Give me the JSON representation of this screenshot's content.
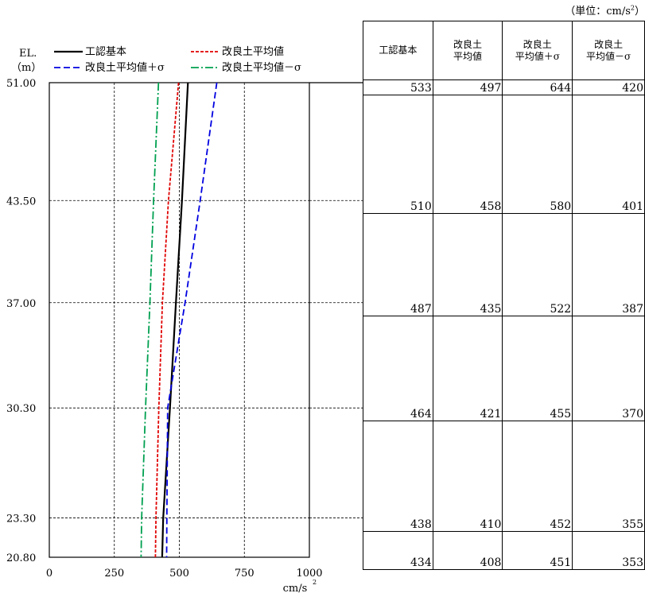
{
  "chart_data": {
    "type": "line",
    "x_axis": {
      "min": 0,
      "max": 1000,
      "ticks": [
        0,
        250,
        500,
        750,
        1000
      ],
      "tick_labels": [
        "0",
        "250",
        "500",
        "750",
        "1000"
      ],
      "unit": "cm/s",
      "unit_sup": "2"
    },
    "y_axis": {
      "label": "EL.",
      "unit": "（m）",
      "min": 20.8,
      "max": 51.0,
      "ticks": [
        51.0,
        43.5,
        37.0,
        30.3,
        23.3,
        20.8
      ],
      "tick_labels": [
        "51.00",
        "43.50",
        "37.00",
        "30.30",
        "23.30",
        "20.80"
      ]
    },
    "grid": true,
    "legend_position": "top",
    "elevations": [
      51.0,
      43.5,
      37.0,
      30.3,
      23.3,
      20.8
    ],
    "series": [
      {
        "name": "工認基本",
        "color": "#000000",
        "dash": "solid",
        "values": [
          533,
          510,
          487,
          464,
          438,
          434
        ]
      },
      {
        "name": "改良土平均値",
        "color": "#e00000",
        "dash": "dot",
        "values": [
          497,
          458,
          435,
          421,
          410,
          408
        ]
      },
      {
        "name": "改良土平均値＋σ",
        "color": "#0000e0",
        "dash": "dash",
        "values": [
          644,
          580,
          522,
          455,
          452,
          451
        ]
      },
      {
        "name": "改良土平均値－σ",
        "color": "#00a050",
        "dash": "dashdot",
        "values": [
          420,
          401,
          387,
          370,
          355,
          353
        ]
      }
    ]
  },
  "table": {
    "unit_prefix": "（単位：cm/s",
    "unit_sup": "2",
    "unit_suffix": "）",
    "headers": [
      [
        "工認基本"
      ],
      [
        "改良土",
        "平均値"
      ],
      [
        "改良土",
        "平均値＋σ"
      ],
      [
        "改良土",
        "平均値－σ"
      ]
    ],
    "rows": [
      [
        "533",
        "497",
        "644",
        "420"
      ],
      [
        "510",
        "458",
        "580",
        "401"
      ],
      [
        "487",
        "435",
        "522",
        "387"
      ],
      [
        "464",
        "421",
        "455",
        "370"
      ],
      [
        "438",
        "410",
        "452",
        "355"
      ],
      [
        "434",
        "408",
        "451",
        "353"
      ]
    ]
  }
}
